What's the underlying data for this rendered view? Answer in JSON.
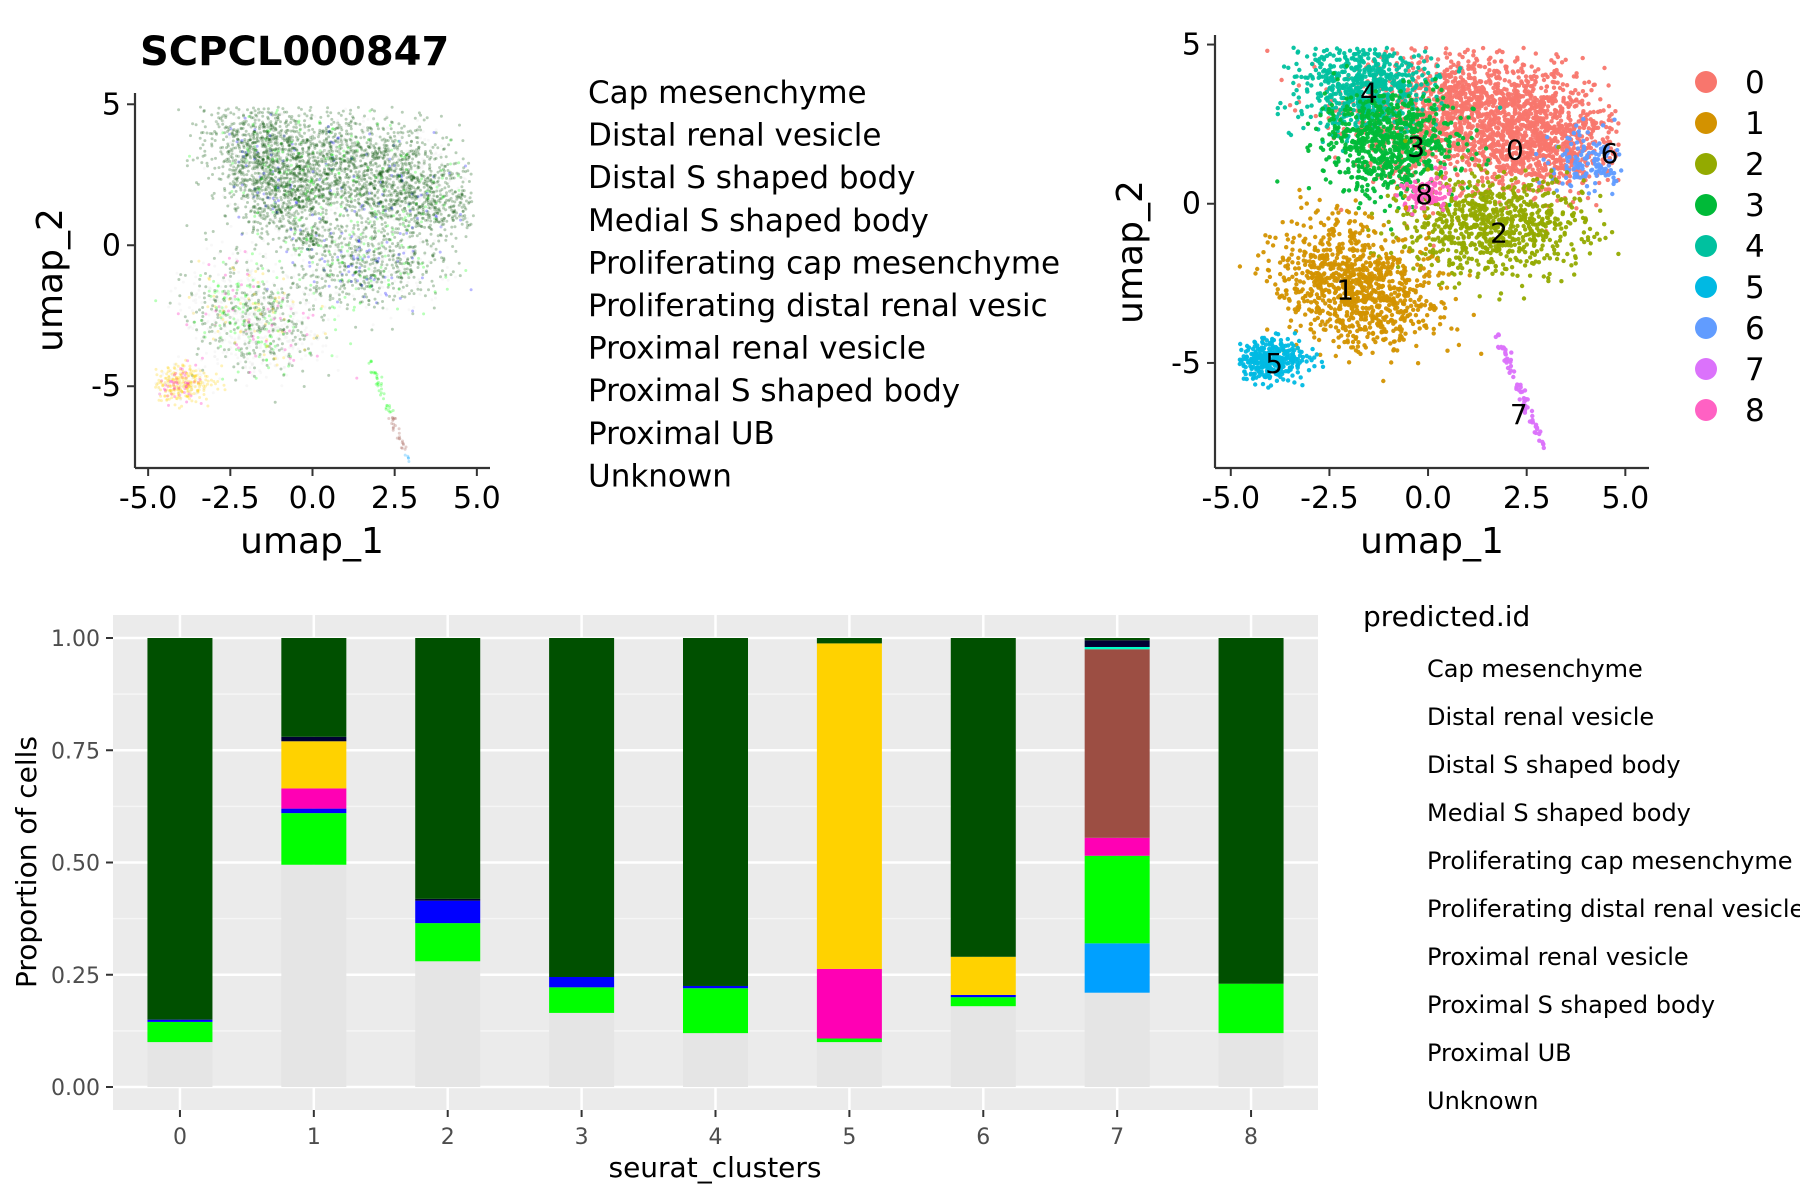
{
  "colors": {
    "panel_bg": "#EBEBEB",
    "grid_major": "#FFFFFF",
    "unknown": "#E5E5E5",
    "cell_types": {
      "Cap mesenchyme": "#005000",
      "Distal renal vesicle": "#000033",
      "Distal S shaped body": "#00FFC8",
      "Medial S shaped body": "#9C4E43",
      "Proliferating cap mesenchyme": "#FFD200",
      "Proliferating distal renal vesicle": "#FF00B4",
      "Proximal renal vesicle": "#0000FF",
      "Proximal S shaped body": "#00FF00",
      "Proximal UB": "#00A0FF",
      "Unknown": "#E5E5E5"
    },
    "clusters": [
      "#F8766D",
      "#D39200",
      "#93AA00",
      "#00BA38",
      "#00C19F",
      "#00B9E3",
      "#619CFF",
      "#DB72FB",
      "#FF61C3"
    ]
  },
  "chart_data": [
    {
      "type": "scatter",
      "title": "SCPCL000847",
      "xlabel": "umap_1",
      "ylabel": "umap_2",
      "xlim": [
        -5.4,
        5.4
      ],
      "ylim": [
        -7.9,
        5.4
      ],
      "x_ticks": [
        -5.0,
        -2.5,
        0.0,
        2.5,
        5.0
      ],
      "x_tick_labels": [
        "-5.0",
        "-2.5",
        "0.0",
        "2.5",
        "5.0"
      ],
      "y_ticks": [
        -5,
        0,
        5
      ],
      "y_tick_labels": [
        "-5",
        "0",
        "5"
      ],
      "grid": false,
      "legend_position": "right",
      "legend": [
        "Cap mesenchyme",
        "Distal renal vesicle",
        "Distal S shaped body",
        "Medial S shaped body",
        "Proliferating cap mesenchyme",
        "Proliferating distal renal vesicle",
        "Proximal renal vesicle",
        "Proximal S shaped body",
        "Proximal UB",
        "Unknown"
      ],
      "legend_display": [
        "Cap mesenchyme",
        "Distal renal vesicle",
        "Distal S shaped body",
        "Medial S shaped body",
        "Proliferating cap mesenchyme",
        "Proliferating distal renal vesic",
        "Proximal renal vesicle",
        "Proximal S shaped body",
        "Proximal UB",
        "Unknown"
      ]
    },
    {
      "type": "scatter",
      "xlabel": "umap_1",
      "ylabel": "umap_2",
      "xlim": [
        -5.4,
        5.6
      ],
      "ylim": [
        -8.3,
        5.3
      ],
      "x_ticks": [
        -5.0,
        -2.5,
        0.0,
        2.5,
        5.0
      ],
      "x_tick_labels": [
        "-5.0",
        "-2.5",
        "0.0",
        "2.5",
        "5.0"
      ],
      "y_ticks": [
        -5,
        0,
        5
      ],
      "y_tick_labels": [
        "-5",
        "0",
        "5"
      ],
      "grid": false,
      "legend_position": "right",
      "legend": [
        "0",
        "1",
        "2",
        "3",
        "4",
        "5",
        "6",
        "7",
        "8"
      ],
      "cluster_label_points": [
        {
          "label": "0",
          "x": 2.2,
          "y": 1.7
        },
        {
          "label": "1",
          "x": -2.1,
          "y": -2.7
        },
        {
          "label": "2",
          "x": 1.8,
          "y": -0.9
        },
        {
          "label": "3",
          "x": -0.3,
          "y": 1.8
        },
        {
          "label": "4",
          "x": -1.5,
          "y": 3.5
        },
        {
          "label": "5",
          "x": -3.9,
          "y": -5.0
        },
        {
          "label": "6",
          "x": 4.6,
          "y": 1.6
        },
        {
          "label": "7",
          "x": 2.3,
          "y": -6.6
        },
        {
          "label": "8",
          "x": -0.1,
          "y": 0.3
        }
      ]
    },
    {
      "type": "bar",
      "stacked": true,
      "xlabel": "seurat_clusters",
      "ylabel": "Proportion of cells",
      "ylim": [
        0,
        1.05
      ],
      "y_ticks": [
        0,
        0.25,
        0.5,
        0.75,
        1.0
      ],
      "y_tick_labels": [
        "0.00",
        "0.25",
        "0.50",
        "0.75",
        "1.00"
      ],
      "grid": true,
      "legend_title": "predicted.id",
      "legend_position": "right",
      "categories": [
        "0",
        "1",
        "2",
        "3",
        "4",
        "5",
        "6",
        "7",
        "8"
      ],
      "series": [
        {
          "name": "Unknown",
          "values": [
            0.1,
            0.495,
            0.28,
            0.165,
            0.12,
            0.1,
            0.18,
            0.21,
            0.12
          ]
        },
        {
          "name": "Proximal UB",
          "values": [
            0,
            0,
            0,
            0,
            0,
            0,
            0,
            0.11,
            0
          ]
        },
        {
          "name": "Proximal S shaped body",
          "values": [
            0.045,
            0.115,
            0.085,
            0.057,
            0.1,
            0.008,
            0.02,
            0.195,
            0.11
          ]
        },
        {
          "name": "Proximal renal vesicle",
          "values": [
            0.005,
            0.01,
            0.05,
            0.023,
            0.005,
            0,
            0.005,
            0,
            0
          ]
        },
        {
          "name": "Proliferating distal renal vesicle",
          "values": [
            0,
            0.045,
            0,
            0,
            0,
            0.155,
            0,
            0.04,
            0
          ]
        },
        {
          "name": "Proliferating cap mesenchyme",
          "values": [
            0,
            0.105,
            0,
            0,
            0,
            0.725,
            0.085,
            0,
            0
          ]
        },
        {
          "name": "Medial S shaped body",
          "values": [
            0,
            0,
            0,
            0,
            0,
            0,
            0,
            0.42,
            0
          ]
        },
        {
          "name": "Distal S shaped body",
          "values": [
            0,
            0,
            0,
            0,
            0,
            0,
            0,
            0.005,
            0
          ]
        },
        {
          "name": "Distal renal vesicle",
          "values": [
            0,
            0.01,
            0.004,
            0,
            0,
            0,
            0,
            0.015,
            0
          ]
        },
        {
          "name": "Cap mesenchyme",
          "values": [
            0.85,
            0.22,
            0.581,
            0.755,
            0.775,
            0.012,
            0.71,
            0.005,
            0.77
          ]
        }
      ],
      "legend": [
        "Cap mesenchyme",
        "Distal renal vesicle",
        "Distal S shaped body",
        "Medial S shaped body",
        "Proliferating cap mesenchyme",
        "Proliferating distal renal vesicle",
        "Proximal renal vesicle",
        "Proximal S shaped body",
        "Proximal UB",
        "Unknown"
      ]
    }
  ]
}
